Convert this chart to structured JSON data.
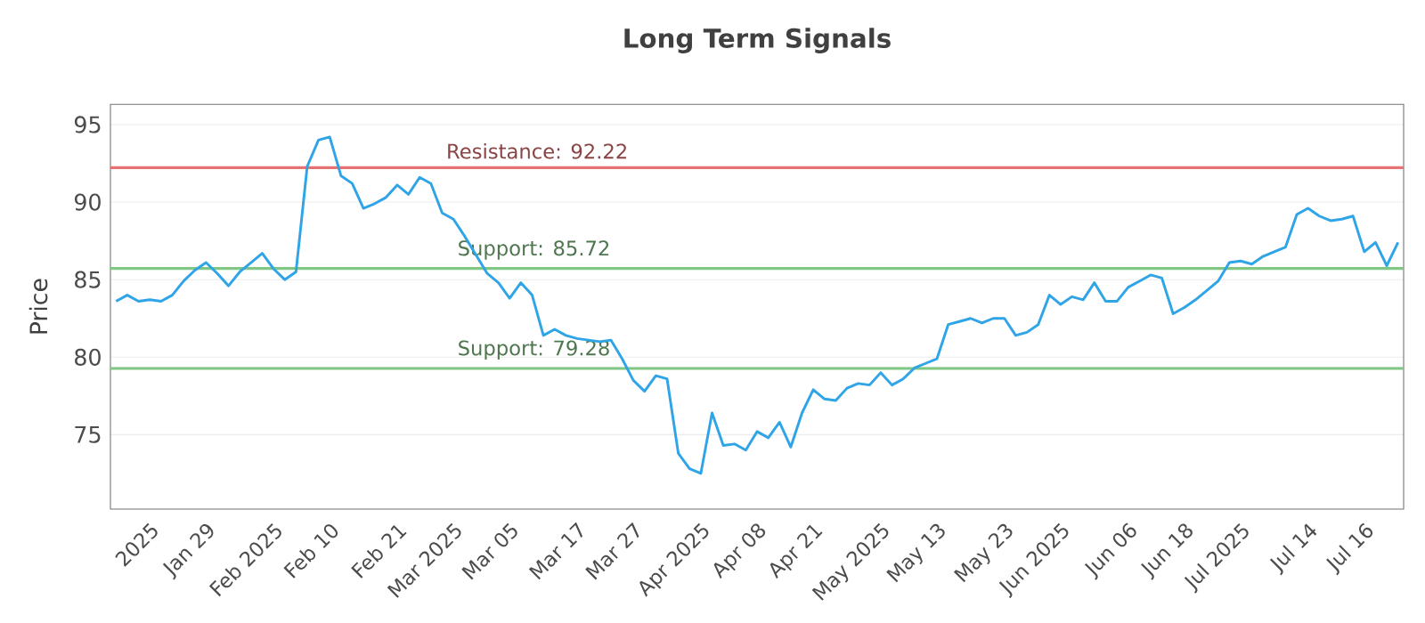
{
  "chart_data": {
    "type": "line",
    "title": "Long Term Signals",
    "ylabel": "Price",
    "categories": [
      null,
      null,
      null,
      "2025",
      null,
      null,
      null,
      null,
      "Jan 29",
      null,
      null,
      null,
      null,
      null,
      "Feb 2025",
      null,
      null,
      null,
      null,
      "Feb 10",
      null,
      null,
      null,
      null,
      null,
      "Feb 21",
      null,
      null,
      null,
      null,
      "Mar 2025",
      null,
      null,
      null,
      null,
      "Mar 05",
      null,
      null,
      null,
      null,
      null,
      "Mar 17",
      null,
      null,
      null,
      null,
      "Mar 27",
      null,
      null,
      null,
      null,
      null,
      "Apr 2025",
      null,
      null,
      null,
      null,
      "Apr 08",
      null,
      null,
      null,
      null,
      "Apr 21",
      null,
      null,
      null,
      null,
      null,
      "May 2025",
      null,
      null,
      null,
      null,
      "May 13",
      null,
      null,
      null,
      null,
      null,
      "May 23",
      null,
      null,
      null,
      null,
      "Jun 2025",
      null,
      null,
      null,
      null,
      null,
      "Jun 06",
      null,
      null,
      null,
      null,
      "Jun 18",
      null,
      null,
      null,
      null,
      "Jul 2025",
      null,
      null,
      null,
      null,
      null,
      "Jul 14",
      null,
      null,
      null,
      null,
      "Jul 16",
      null,
      null,
      null
    ],
    "series": [
      {
        "color": "#2fa4e7",
        "values": [
          83.6,
          84.0,
          83.6,
          83.7,
          83.6,
          84.0,
          84.9,
          85.6,
          86.1,
          85.4,
          84.6,
          85.5,
          86.1,
          86.7,
          85.7,
          85.0,
          85.5,
          92.3,
          94.0,
          94.2,
          91.7,
          91.2,
          89.6,
          89.9,
          90.3,
          91.1,
          90.5,
          91.6,
          91.2,
          89.3,
          88.9,
          87.8,
          86.6,
          85.4,
          84.8,
          83.8,
          84.8,
          84.0,
          81.4,
          81.8,
          81.4,
          81.2,
          81.1,
          81.0,
          81.1,
          79.9,
          78.5,
          77.8,
          78.8,
          78.6,
          73.8,
          72.8,
          72.5,
          76.4,
          74.3,
          74.4,
          74.0,
          75.2,
          74.8,
          75.8,
          74.2,
          76.4,
          77.9,
          77.3,
          77.2,
          78.0,
          78.3,
          78.2,
          79.0,
          78.2,
          78.6,
          79.3,
          79.6,
          79.9,
          82.1,
          82.3,
          82.5,
          82.2,
          82.5,
          82.5,
          81.4,
          81.6,
          82.1,
          84.0,
          83.4,
          83.9,
          83.7,
          84.8,
          83.6,
          83.6,
          84.5,
          84.9,
          85.3,
          85.1,
          82.8,
          83.2,
          83.7,
          84.3,
          84.9,
          86.1,
          86.2,
          86.0,
          86.5,
          86.8,
          87.1,
          89.2,
          89.6,
          89.1,
          88.8,
          88.9,
          89.1,
          86.8,
          87.4,
          85.9,
          87.4
        ]
      }
    ],
    "ylim": [
      70.2,
      96.3
    ],
    "yticks": [
      75,
      80,
      85,
      90,
      95
    ],
    "grid": "y",
    "marker": "none",
    "line_style": "solid",
    "ref_lines": [
      {
        "axis": "y",
        "value": 92.22,
        "label": "Resistance: 92.22",
        "color": "#e57373"
      },
      {
        "axis": "y",
        "value": 85.72,
        "label": "Support: 85.72",
        "color": "#81c784"
      },
      {
        "axis": "y",
        "value": 79.28,
        "label": "Support: 79.28",
        "color": "#81c784"
      }
    ]
  }
}
